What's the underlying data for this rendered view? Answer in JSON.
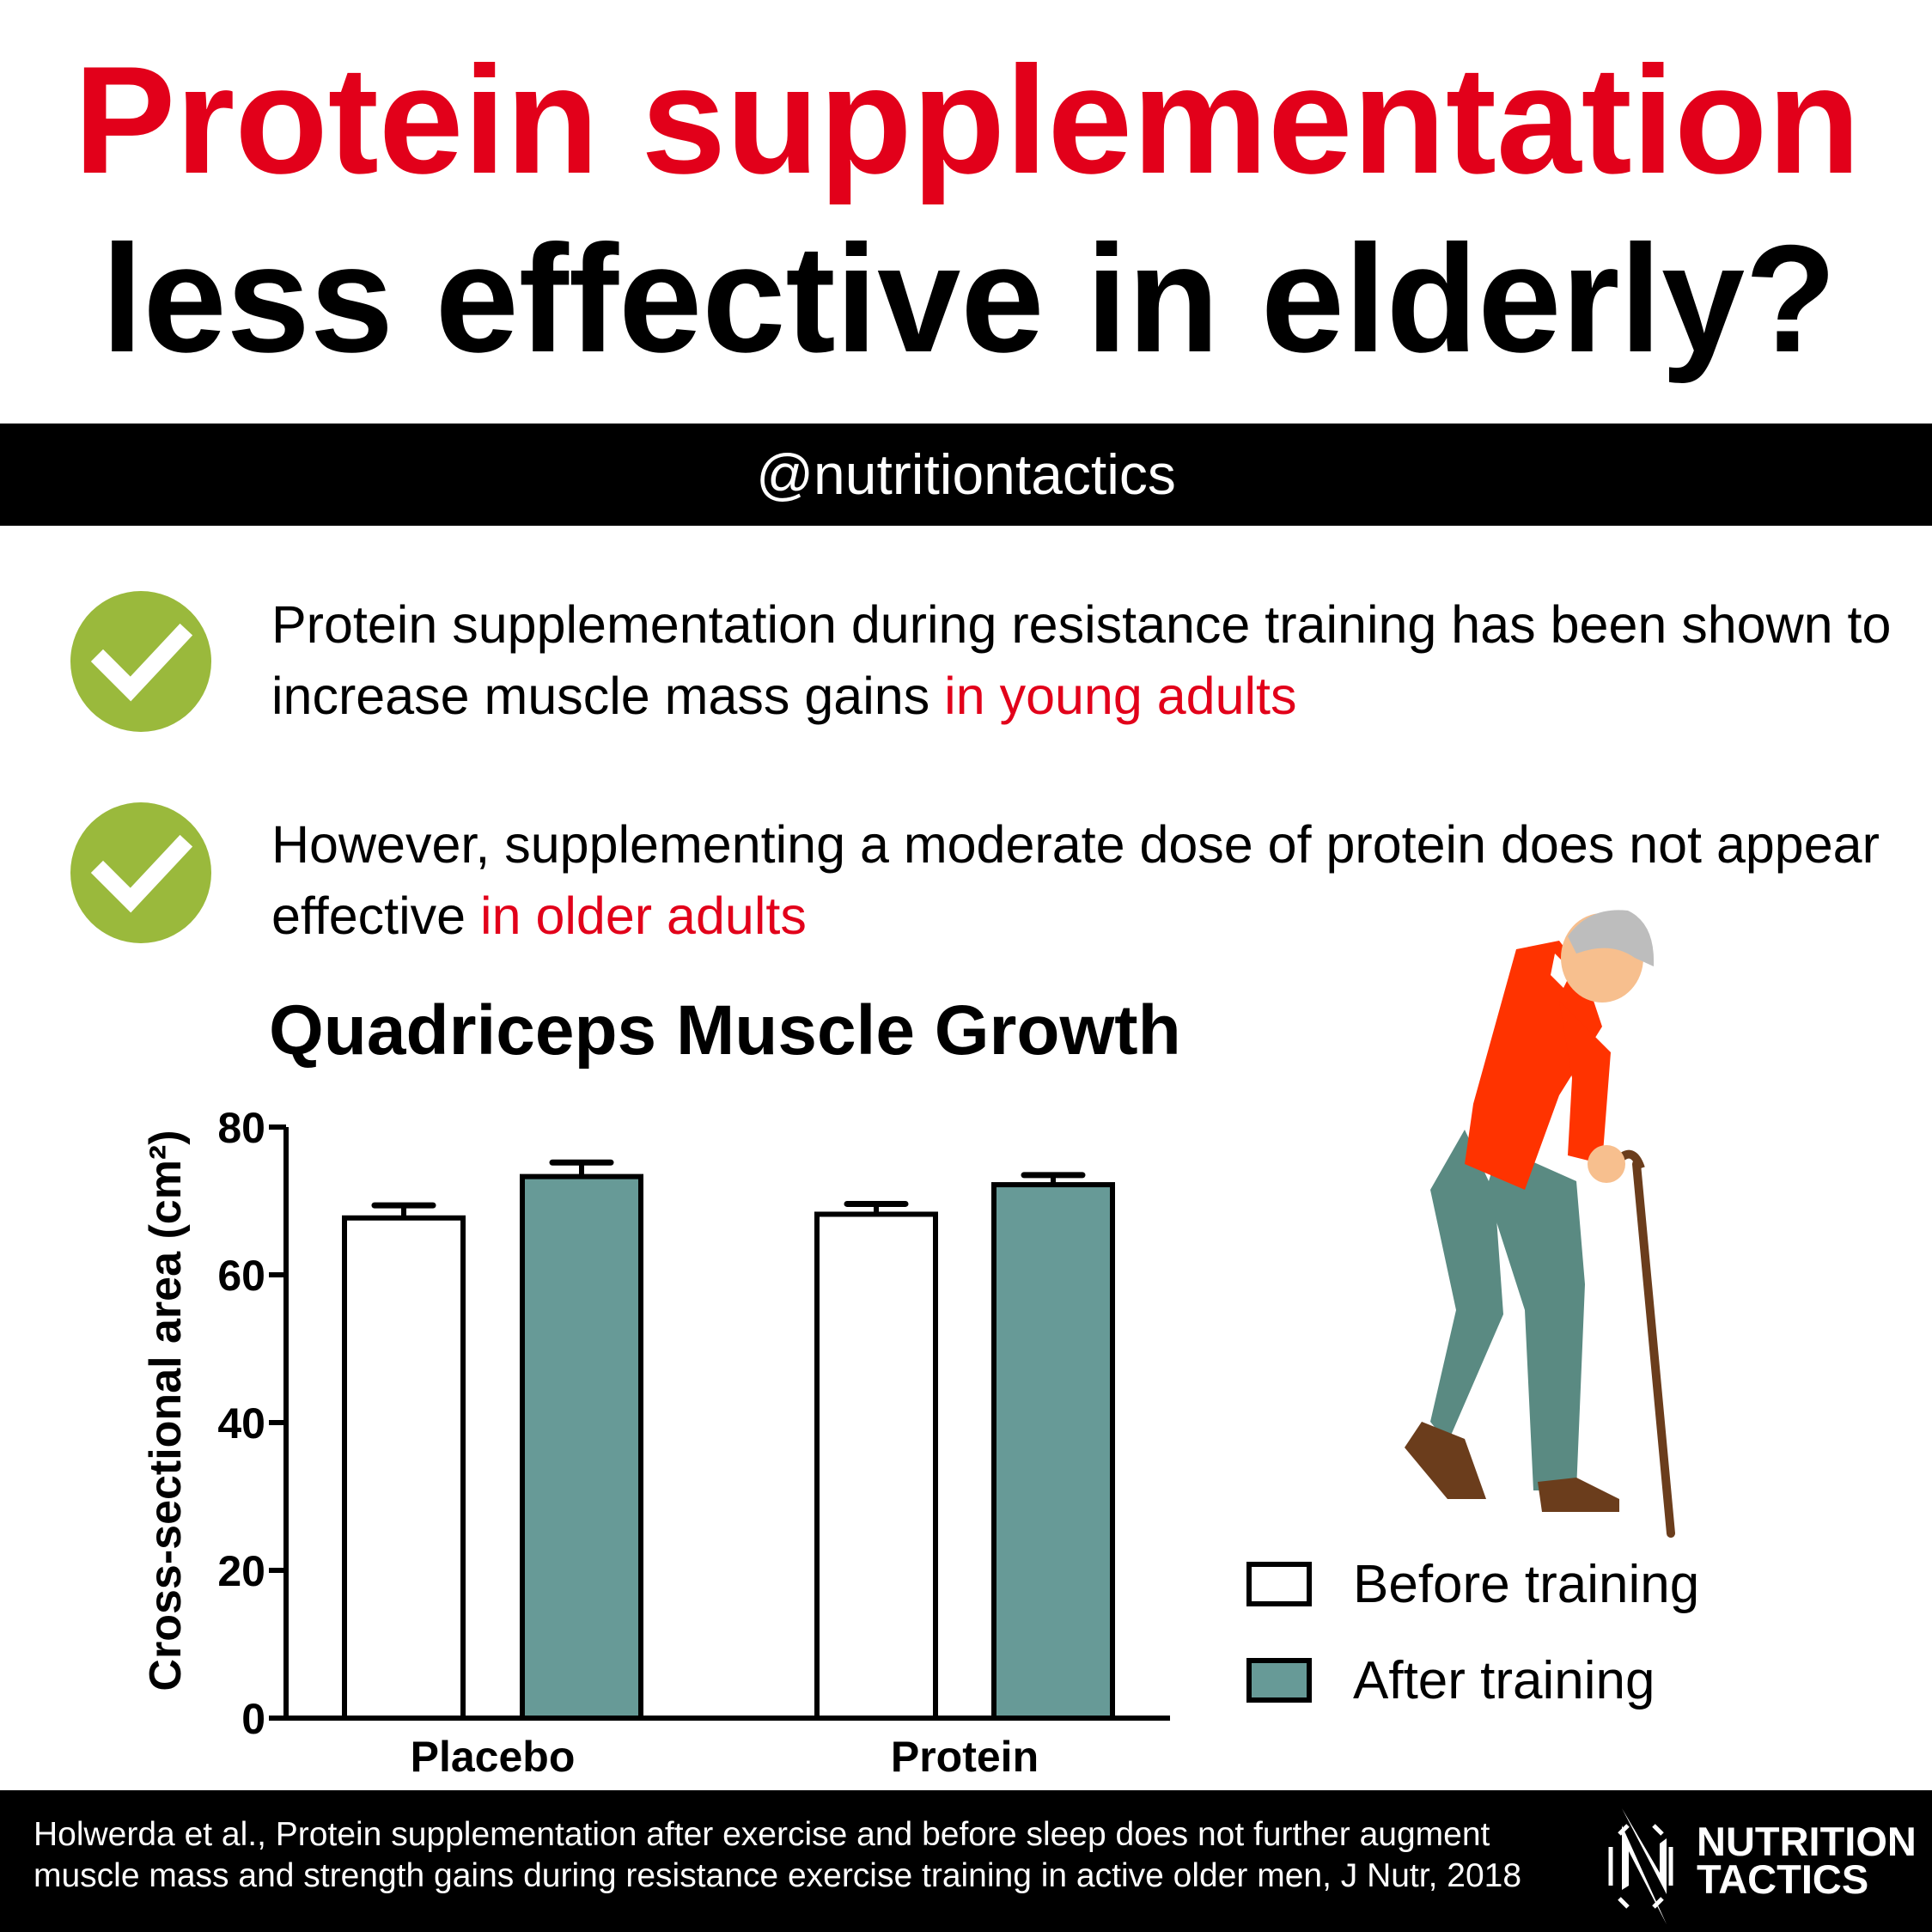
{
  "header": {
    "title_line1": "Protein supplementation",
    "title_line2": "less effective in elderly?",
    "handle": "@nutritiontactics"
  },
  "points": [
    {
      "icon": "check-icon",
      "text": "Protein supplementation during resistance training has been shown to increase muscle mass gains ",
      "highlight": "in young adults"
    },
    {
      "icon": "check-icon",
      "text": "However, supplementing a moderate dose of protein does not appear effective ",
      "highlight": "in older adults"
    }
  ],
  "colors": {
    "red": "#e2001a",
    "check_green": "#9ab93c",
    "after_bar": "#679a97",
    "before_bar": "#ffffff"
  },
  "chart_data": {
    "type": "bar",
    "title": "Quadriceps Muscle Growth",
    "ylabel": "Cross-sectional area  (cm²)",
    "xlabel": "",
    "categories": [
      "Placebo",
      "Protein"
    ],
    "ylim": [
      0,
      80
    ],
    "yticks": [
      0,
      20,
      40,
      60,
      80
    ],
    "grid": false,
    "legend_placement": "right",
    "error_bars": true,
    "series": [
      {
        "name": "Before training",
        "values": [
          67.7,
          68.2
        ],
        "errors": [
          1.7,
          1.4
        ],
        "color": "#ffffff"
      },
      {
        "name": "After training",
        "values": [
          73.3,
          72.2
        ],
        "errors": [
          1.9,
          1.3
        ],
        "color": "#679a97"
      }
    ]
  },
  "footer": {
    "citation_line1": "Holwerda et al., Protein supplementation after exercise and before sleep does not further augment",
    "citation_line2": "muscle mass and strength gains during resistance exercise training in active older men, J Nutr, 2018",
    "logo_line1": "NUTRITION",
    "logo_line2": "TACTICS"
  }
}
